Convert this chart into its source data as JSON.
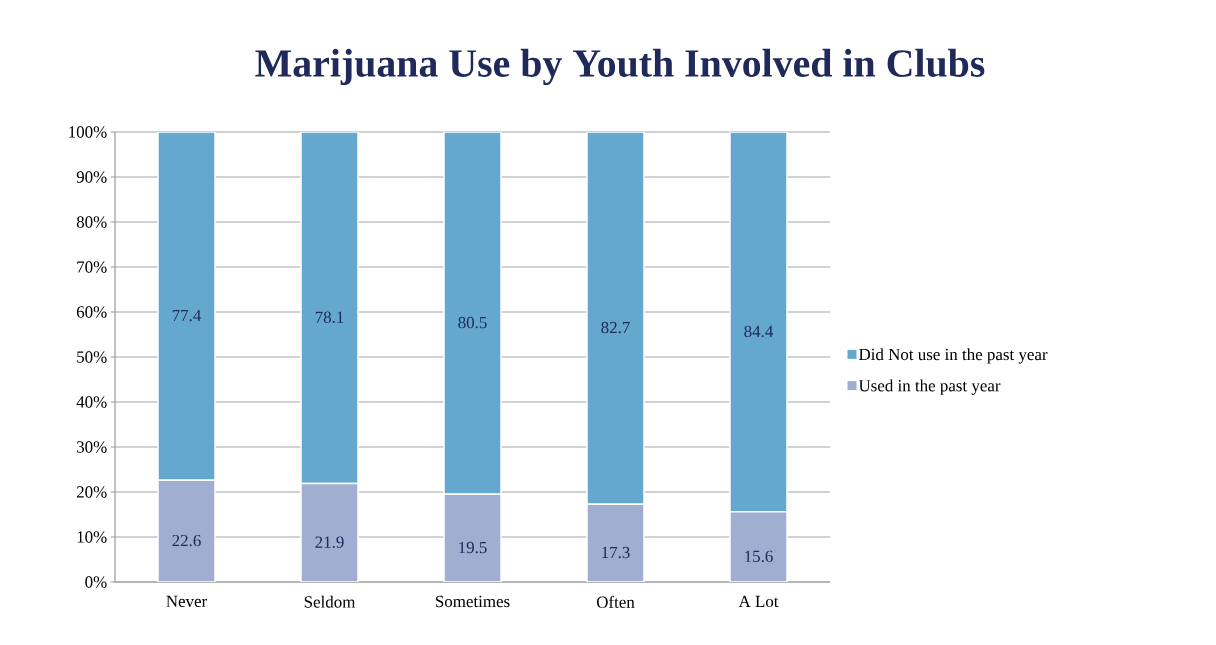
{
  "chart_data": {
    "type": "bar",
    "title": "Marijuana Use by Youth Involved in Clubs",
    "categories": [
      "Never",
      "Seldom",
      "Sometimes",
      "Often",
      "A Lot"
    ],
    "stacked": true,
    "data_labels": true,
    "grid": "y",
    "legend": "right",
    "ylim": [
      0,
      100
    ],
    "yticks": [
      {
        "value": 0,
        "label": "0%"
      },
      {
        "value": 10,
        "label": "10%"
      },
      {
        "value": 20,
        "label": "20%"
      },
      {
        "value": 30,
        "label": "30%"
      },
      {
        "value": 40,
        "label": "40%"
      },
      {
        "value": 50,
        "label": "50%"
      },
      {
        "value": 60,
        "label": "60%"
      },
      {
        "value": 70,
        "label": "70%"
      },
      {
        "value": 80,
        "label": "80%"
      },
      {
        "value": 90,
        "label": "90%"
      },
      {
        "value": 100,
        "label": "100%"
      }
    ],
    "series": [
      {
        "name": "Used in the past year",
        "color": "#a0aed2",
        "values": [
          22.6,
          21.9,
          19.5,
          17.3,
          15.6
        ]
      },
      {
        "name": "Did Not use in the past year",
        "color": "#64a8d0",
        "values": [
          77.4,
          78.1,
          80.5,
          82.7,
          84.4
        ]
      }
    ]
  }
}
